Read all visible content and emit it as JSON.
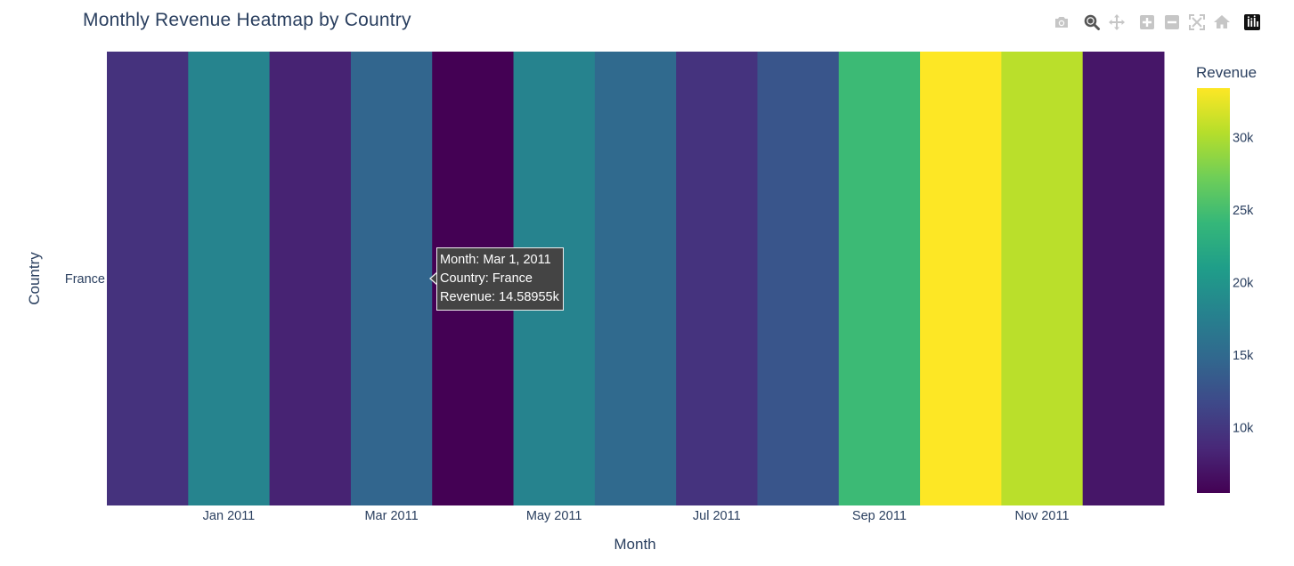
{
  "chart_title": "Monthly Revenue Heatmap by Country",
  "toolbar": [
    {
      "name": "camera-icon",
      "title": "Download plot as a png"
    },
    {
      "name": "zoom-icon",
      "title": "Zoom"
    },
    {
      "name": "pan-icon",
      "title": "Pan"
    },
    {
      "name": "zoom-in-icon",
      "title": "Zoom in"
    },
    {
      "name": "zoom-out-icon",
      "title": "Zoom out"
    },
    {
      "name": "autoscale-icon",
      "title": "Autoscale"
    },
    {
      "name": "reset-axes-icon",
      "title": "Reset axes"
    },
    {
      "name": "plotly-logo-icon",
      "title": "Produced with Plotly"
    }
  ],
  "tooltip": {
    "line1": "Month: Mar 1, 2011",
    "line2": "Country: France",
    "line3": "Revenue: 14.58955k"
  },
  "chart_data": {
    "type": "heatmap",
    "title": "Monthly Revenue Heatmap by Country",
    "xlabel": "Month",
    "ylabel": "Country",
    "colorbar_title": "Revenue",
    "colorscale": "Viridis",
    "zrange": [
      5500,
      33400
    ],
    "colorbar_ticks": [
      10000,
      15000,
      20000,
      25000,
      30000
    ],
    "colorbar_ticklabels": [
      "10k",
      "15k",
      "20k",
      "25k",
      "30k"
    ],
    "x": [
      "Dec 2010",
      "Jan 2011",
      "Feb 2011",
      "Mar 2011",
      "Apr 2011",
      "May 2011",
      "Jun 2011",
      "Jul 2011",
      "Aug 2011",
      "Sep 2011",
      "Oct 2011",
      "Nov 2011",
      "Dec 2011"
    ],
    "x_tick_labels": [
      "Jan 2011",
      "Mar 2011",
      "May 2011",
      "Jul 2011",
      "Sep 2011",
      "Nov 2011"
    ],
    "y": [
      "France"
    ],
    "z": [
      [
        9500,
        18100,
        8200,
        14589.55,
        5500,
        18000,
        15000,
        9600,
        12900,
        24500,
        33400,
        30500,
        7200
      ]
    ],
    "grid": false
  }
}
